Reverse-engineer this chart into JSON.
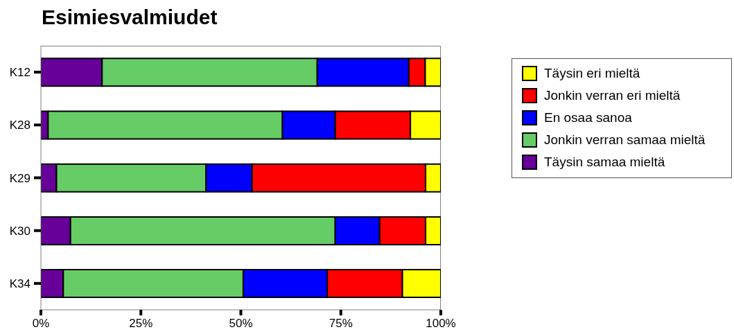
{
  "chart_data": {
    "type": "bar",
    "orientation": "horizontal",
    "stacked": true,
    "title": "Esimiesvalmiudet",
    "categories": [
      "K12",
      "K28",
      "K29",
      "K30",
      "K34"
    ],
    "series": [
      {
        "name": "Täysin samaa mieltä",
        "color": "#660099",
        "values": [
          15.3,
          1.8,
          3.9,
          7.4,
          5.6
        ]
      },
      {
        "name": "Jonkin verran samaa mieltä",
        "color": "#66cc66",
        "values": [
          53.8,
          58.6,
          37.4,
          66.2,
          45.0
        ]
      },
      {
        "name": "En osaa sanoa",
        "color": "#0000ff",
        "values": [
          22.9,
          13.2,
          11.5,
          11.1,
          21.0
        ]
      },
      {
        "name": "Jonkin verran eri mieltä",
        "color": "#ff0000",
        "values": [
          4.1,
          18.8,
          43.4,
          11.5,
          18.8
        ]
      },
      {
        "name": "Täysin eri mieltä",
        "color": "#ffff00",
        "values": [
          3.9,
          7.6,
          3.8,
          3.8,
          9.6
        ]
      }
    ],
    "xlim": [
      0,
      100
    ],
    "xticks": [
      {
        "value": 0,
        "label": "0%"
      },
      {
        "value": 25,
        "label": "25%"
      },
      {
        "value": 50,
        "label": "50%"
      },
      {
        "value": 75,
        "label": "75%"
      },
      {
        "value": 100,
        "label": "100%"
      }
    ],
    "legend": "top right"
  }
}
